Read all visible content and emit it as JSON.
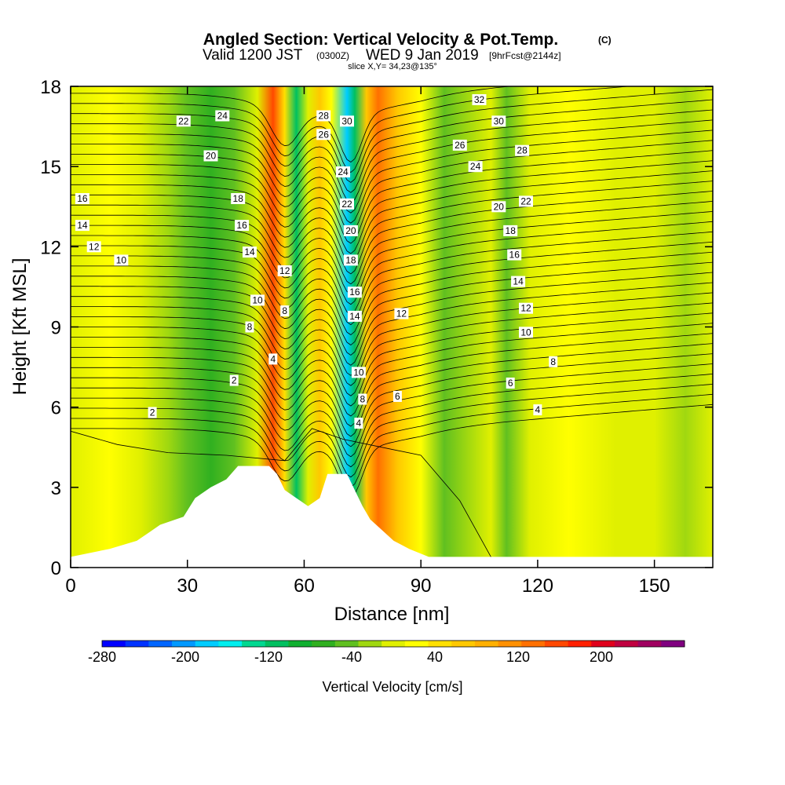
{
  "header": {
    "title": "Angled Section: Vertical Velocity & Pot.Temp.",
    "title_unit": "(C)",
    "valid_prefix": "Valid 1200 JST",
    "valid_z": "(0300Z)",
    "valid_date": "WED 9 Jan 2019",
    "forecast": "[9hrFcst@2144z]",
    "slice": "slice X,Y= 34,23@135°"
  },
  "chart_data": {
    "type": "heatmap",
    "title": "Angled Section: Vertical Velocity & Pot.Temp.",
    "xlabel": "Distance [nm]",
    "ylabel": "Height [Kft MSL]",
    "xlim": [
      0,
      165
    ],
    "ylim": [
      0,
      18
    ],
    "x_ticks": [
      0,
      30,
      60,
      90,
      120,
      150
    ],
    "y_ticks": [
      0,
      3,
      6,
      9,
      12,
      15,
      18
    ],
    "colorbar": {
      "label": "Vertical Velocity [cm/s]",
      "range": [
        -280,
        280
      ],
      "tick_values": [
        -280,
        -200,
        -120,
        -40,
        40,
        120,
        200
      ],
      "colors": [
        "#0000ff",
        "#0033ff",
        "#0066ff",
        "#0099ff",
        "#00ccff",
        "#00eeee",
        "#00d890",
        "#00c060",
        "#10b030",
        "#30b020",
        "#60c020",
        "#a0d810",
        "#e0f000",
        "#ffff00",
        "#ffe000",
        "#ffc800",
        "#ffb000",
        "#ff9000",
        "#ff7000",
        "#ff4800",
        "#ff2000",
        "#e0001c",
        "#c00040",
        "#a00060",
        "#800080"
      ]
    },
    "velocity_bands": [
      {
        "x": 0,
        "v": 10
      },
      {
        "x": 10,
        "v": 15
      },
      {
        "x": 18,
        "v": 5
      },
      {
        "x": 25,
        "v": -30
      },
      {
        "x": 30,
        "v": -50
      },
      {
        "x": 36,
        "v": -70
      },
      {
        "x": 42,
        "v": -40
      },
      {
        "x": 48,
        "v": 10
      },
      {
        "x": 52,
        "v": 160
      },
      {
        "x": 55,
        "v": 40
      },
      {
        "x": 58,
        "v": -110
      },
      {
        "x": 61,
        "v": 0
      },
      {
        "x": 64,
        "v": 60
      },
      {
        "x": 67,
        "v": 20
      },
      {
        "x": 71,
        "v": -180
      },
      {
        "x": 73,
        "v": -120
      },
      {
        "x": 76,
        "v": 60
      },
      {
        "x": 79,
        "v": 140
      },
      {
        "x": 84,
        "v": 60
      },
      {
        "x": 90,
        "v": 20
      },
      {
        "x": 96,
        "v": -50
      },
      {
        "x": 102,
        "v": -30
      },
      {
        "x": 108,
        "v": -10
      },
      {
        "x": 112,
        "v": -40
      },
      {
        "x": 118,
        "v": 5
      },
      {
        "x": 128,
        "v": 20
      },
      {
        "x": 140,
        "v": 5
      },
      {
        "x": 150,
        "v": 0
      },
      {
        "x": 158,
        "v": -20
      },
      {
        "x": 165,
        "v": 5
      }
    ],
    "terrain": [
      [
        0,
        0.4
      ],
      [
        10,
        0.7
      ],
      [
        17,
        1.0
      ],
      [
        20,
        1.3
      ],
      [
        23,
        1.6
      ],
      [
        29,
        1.9
      ],
      [
        32,
        2.6
      ],
      [
        36,
        3.0
      ],
      [
        40,
        3.3
      ],
      [
        43,
        3.8
      ],
      [
        51,
        3.8
      ],
      [
        53,
        3.5
      ],
      [
        55,
        2.9
      ],
      [
        58,
        2.6
      ],
      [
        61,
        2.3
      ],
      [
        64,
        2.6
      ],
      [
        66,
        3.5
      ],
      [
        71,
        3.5
      ],
      [
        73,
        2.9
      ],
      [
        75,
        2.3
      ],
      [
        77,
        1.8
      ],
      [
        80,
        1.4
      ],
      [
        83,
        1.0
      ],
      [
        87,
        0.7
      ],
      [
        92,
        0.4
      ],
      [
        165,
        0.4
      ]
    ],
    "theta_labels": [
      {
        "x": 3,
        "y": 13.8,
        "t": "16"
      },
      {
        "x": 3,
        "y": 12.8,
        "t": "14"
      },
      {
        "x": 6,
        "y": 12.0,
        "t": "12"
      },
      {
        "x": 13,
        "y": 11.5,
        "t": "10"
      },
      {
        "x": 29,
        "y": 16.7,
        "t": "22"
      },
      {
        "x": 39,
        "y": 16.9,
        "t": "24"
      },
      {
        "x": 36,
        "y": 15.4,
        "t": "20"
      },
      {
        "x": 43,
        "y": 13.8,
        "t": "18"
      },
      {
        "x": 44,
        "y": 12.8,
        "t": "16"
      },
      {
        "x": 46,
        "y": 11.8,
        "t": "14"
      },
      {
        "x": 48,
        "y": 10.0,
        "t": "10"
      },
      {
        "x": 46,
        "y": 9.0,
        "t": "8"
      },
      {
        "x": 52,
        "y": 7.8,
        "t": "4"
      },
      {
        "x": 42,
        "y": 7.0,
        "t": "2"
      },
      {
        "x": 21,
        "y": 5.8,
        "t": "2"
      },
      {
        "x": 55,
        "y": 11.1,
        "t": "12"
      },
      {
        "x": 55,
        "y": 9.6,
        "t": "8"
      },
      {
        "x": 65,
        "y": 16.9,
        "t": "28"
      },
      {
        "x": 65,
        "y": 16.2,
        "t": "26"
      },
      {
        "x": 71,
        "y": 16.7,
        "t": "30"
      },
      {
        "x": 70,
        "y": 14.8,
        "t": "24"
      },
      {
        "x": 71,
        "y": 13.6,
        "t": "22"
      },
      {
        "x": 72,
        "y": 12.6,
        "t": "20"
      },
      {
        "x": 72,
        "y": 11.5,
        "t": "18"
      },
      {
        "x": 73,
        "y": 10.3,
        "t": "16"
      },
      {
        "x": 73,
        "y": 9.4,
        "t": "14"
      },
      {
        "x": 85,
        "y": 9.5,
        "t": "12"
      },
      {
        "x": 74,
        "y": 7.3,
        "t": "10"
      },
      {
        "x": 75,
        "y": 6.3,
        "t": "8"
      },
      {
        "x": 84,
        "y": 6.4,
        "t": "6"
      },
      {
        "x": 74,
        "y": 5.4,
        "t": "4"
      },
      {
        "x": 105,
        "y": 17.5,
        "t": "32"
      },
      {
        "x": 110,
        "y": 16.7,
        "t": "30"
      },
      {
        "x": 100,
        "y": 15.8,
        "t": "26"
      },
      {
        "x": 116,
        "y": 15.6,
        "t": "28"
      },
      {
        "x": 104,
        "y": 15.0,
        "t": "24"
      },
      {
        "x": 110,
        "y": 13.5,
        "t": "20"
      },
      {
        "x": 117,
        "y": 13.7,
        "t": "22"
      },
      {
        "x": 113,
        "y": 12.6,
        "t": "18"
      },
      {
        "x": 114,
        "y": 11.7,
        "t": "16"
      },
      {
        "x": 115,
        "y": 10.7,
        "t": "14"
      },
      {
        "x": 117,
        "y": 9.7,
        "t": "12"
      },
      {
        "x": 117,
        "y": 8.8,
        "t": "10"
      },
      {
        "x": 124,
        "y": 7.7,
        "t": "8"
      },
      {
        "x": 113,
        "y": 6.9,
        "t": "6"
      },
      {
        "x": 120,
        "y": 5.9,
        "t": "4"
      }
    ]
  }
}
